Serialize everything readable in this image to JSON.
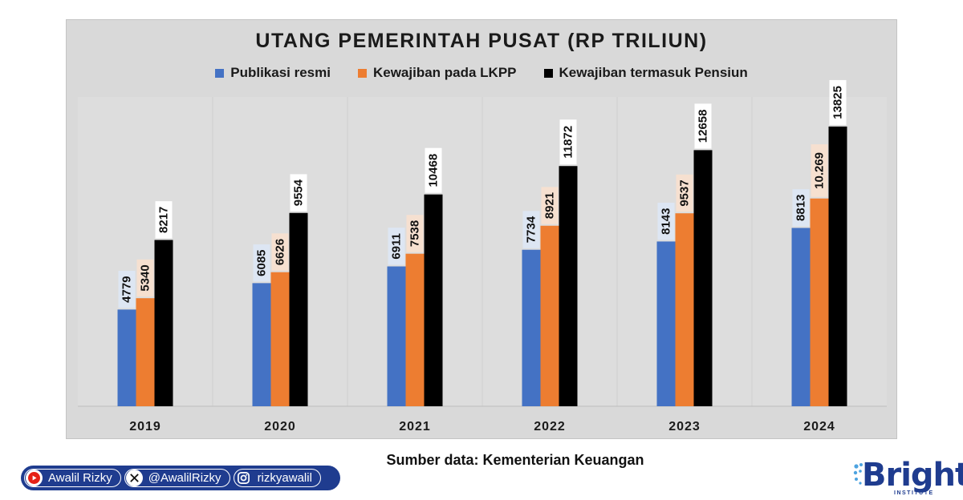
{
  "chart_data": {
    "type": "bar",
    "title": "UTANG PEMERINTAH PUSAT (RP TRILIUN)",
    "categories": [
      "2019",
      "2020",
      "2021",
      "2022",
      "2023",
      "2024"
    ],
    "series": [
      {
        "name": "Publikasi resmi",
        "color": "#4472c4",
        "values": [
          4779,
          6085,
          6911,
          7734,
          8143,
          8813
        ],
        "labels": [
          "4779",
          "6085",
          "6911",
          "7734",
          "8143",
          "8813"
        ]
      },
      {
        "name": "Kewajiban pada LKPP",
        "color": "#ed7d31",
        "values": [
          5340,
          6626,
          7538,
          8921,
          9537,
          10269
        ],
        "labels": [
          "5340",
          "6626",
          "7538",
          "8921",
          "9537",
          "10.269"
        ]
      },
      {
        "name": "Kewajiban termasuk Pensiun",
        "color": "#000000",
        "values": [
          8217,
          9554,
          10468,
          11872,
          12658,
          13825
        ],
        "labels": [
          "8217",
          "9554",
          "10468",
          "11872",
          "12658",
          "13825"
        ]
      }
    ],
    "ylim": [
      0,
      16000
    ],
    "grid": false,
    "legend_position": "top-center",
    "data_labels": "rotated-vertical"
  },
  "source_text": "Sumber data: Kementerian Keuangan",
  "social": {
    "youtube": "Awalil Rizky",
    "x": "@AwalilRizky",
    "instagram": "rizkyawalil"
  },
  "brand": {
    "name": "Bright",
    "subtitle": "INSTITUTE",
    "color": "#1f3c8f"
  }
}
